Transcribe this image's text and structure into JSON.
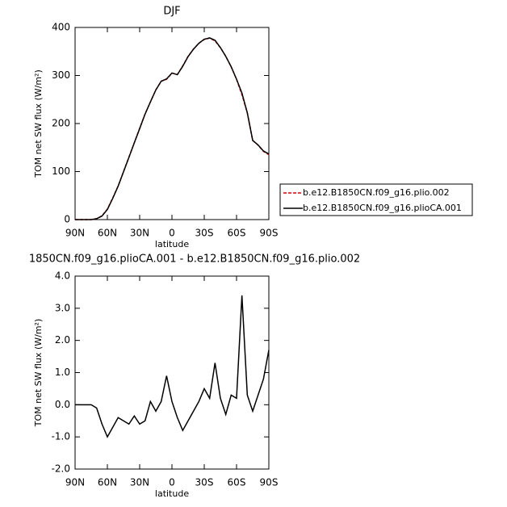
{
  "chart_data": [
    {
      "type": "line",
      "title": "DJF",
      "xlabel": "latitude",
      "ylabel": "TOM net SW flux (W/m²)",
      "x": [
        90,
        85,
        80,
        75,
        70,
        65,
        60,
        55,
        50,
        45,
        40,
        35,
        30,
        25,
        20,
        15,
        10,
        5,
        0,
        -5,
        -10,
        -15,
        -20,
        -25,
        -30,
        -35,
        -40,
        -45,
        -50,
        -55,
        -60,
        -65,
        -70,
        -75,
        -80,
        -85,
        -90
      ],
      "xlim": [
        90,
        -90
      ],
      "xticks": [
        {
          "value": 90,
          "label": "90N"
        },
        {
          "value": 60,
          "label": "60N"
        },
        {
          "value": 30,
          "label": "30N"
        },
        0,
        {
          "value": -30,
          "label": "30S"
        },
        {
          "value": -60,
          "label": "60S"
        },
        {
          "value": -90,
          "label": "90S"
        }
      ],
      "ylim": [
        0,
        400
      ],
      "yticks": [
        0,
        100,
        200,
        300,
        400
      ],
      "legend": "right",
      "series": [
        {
          "name": "b.e12.B1850CN.f09_g16.plio.002",
          "color": "#e00000",
          "dashed": true,
          "values": [
            0,
            0,
            0,
            0,
            2,
            8,
            22,
            45,
            70,
            100,
            130,
            160,
            190,
            220,
            245,
            270,
            288,
            292,
            305,
            302,
            320,
            340,
            355,
            367,
            375,
            378,
            372,
            358,
            340,
            318,
            292,
            260,
            222,
            165,
            155,
            142,
            135
          ]
        },
        {
          "name": "b.e12.B1850CN.f09_g16.plioCA.001",
          "color": "#000000",
          "dashed": false,
          "values": [
            0,
            0,
            0,
            0,
            1.9,
            7.4,
            21,
            44.3,
            69.6,
            99.5,
            129.4,
            159.7,
            189.4,
            219.5,
            245.1,
            269.8,
            288.1,
            292.9,
            305.1,
            301.6,
            319.2,
            339.5,
            354.8,
            367.1,
            375.5,
            378.2,
            373.3,
            358.2,
            339.7,
            318.3,
            292.2,
            263.4,
            222.3,
            164.8,
            155.3,
            142.8,
            136.7
          ]
        }
      ]
    },
    {
      "type": "line",
      "title": "1850CN.f09_g16.plioCA.001 - b.e12.B1850CN.f09_g16.plio.002",
      "xlabel": "latitude",
      "ylabel": "TOM net SW flux (W/m²)",
      "x": [
        90,
        85,
        80,
        75,
        70,
        65,
        60,
        55,
        50,
        45,
        40,
        35,
        30,
        25,
        20,
        15,
        10,
        5,
        0,
        -5,
        -10,
        -15,
        -20,
        -25,
        -30,
        -35,
        -40,
        -45,
        -50,
        -55,
        -60,
        -65,
        -70,
        -75,
        -80,
        -85,
        -90
      ],
      "xlim": [
        90,
        -90
      ],
      "xticks": [
        {
          "value": 90,
          "label": "90N"
        },
        {
          "value": 60,
          "label": "60N"
        },
        {
          "value": 30,
          "label": "30N"
        },
        0,
        {
          "value": -30,
          "label": "30S"
        },
        {
          "value": -60,
          "label": "60S"
        },
        {
          "value": -90,
          "label": "90S"
        }
      ],
      "ylim": [
        -2,
        4
      ],
      "yticks": [
        {
          "value": -2,
          "label": "-2.0"
        },
        {
          "value": -1,
          "label": "-1.0"
        },
        {
          "value": 0,
          "label": "0.0"
        },
        {
          "value": 1,
          "label": "1.0"
        },
        {
          "value": 2,
          "label": "2.0"
        },
        {
          "value": 3,
          "label": "3.0"
        },
        {
          "value": 4,
          "label": "4.0"
        }
      ],
      "color": "#000000",
      "values": [
        0,
        0,
        0,
        0,
        -0.1,
        -0.6,
        -1.0,
        -0.7,
        -0.4,
        -0.5,
        -0.6,
        -0.35,
        -0.6,
        -0.5,
        0.1,
        -0.2,
        0.1,
        0.9,
        0.1,
        -0.4,
        -0.8,
        -0.5,
        -0.2,
        0.1,
        0.5,
        0.2,
        1.3,
        0.2,
        -0.3,
        0.3,
        0.2,
        3.4,
        0.3,
        -0.2,
        0.3,
        0.8,
        1.7
      ]
    }
  ]
}
